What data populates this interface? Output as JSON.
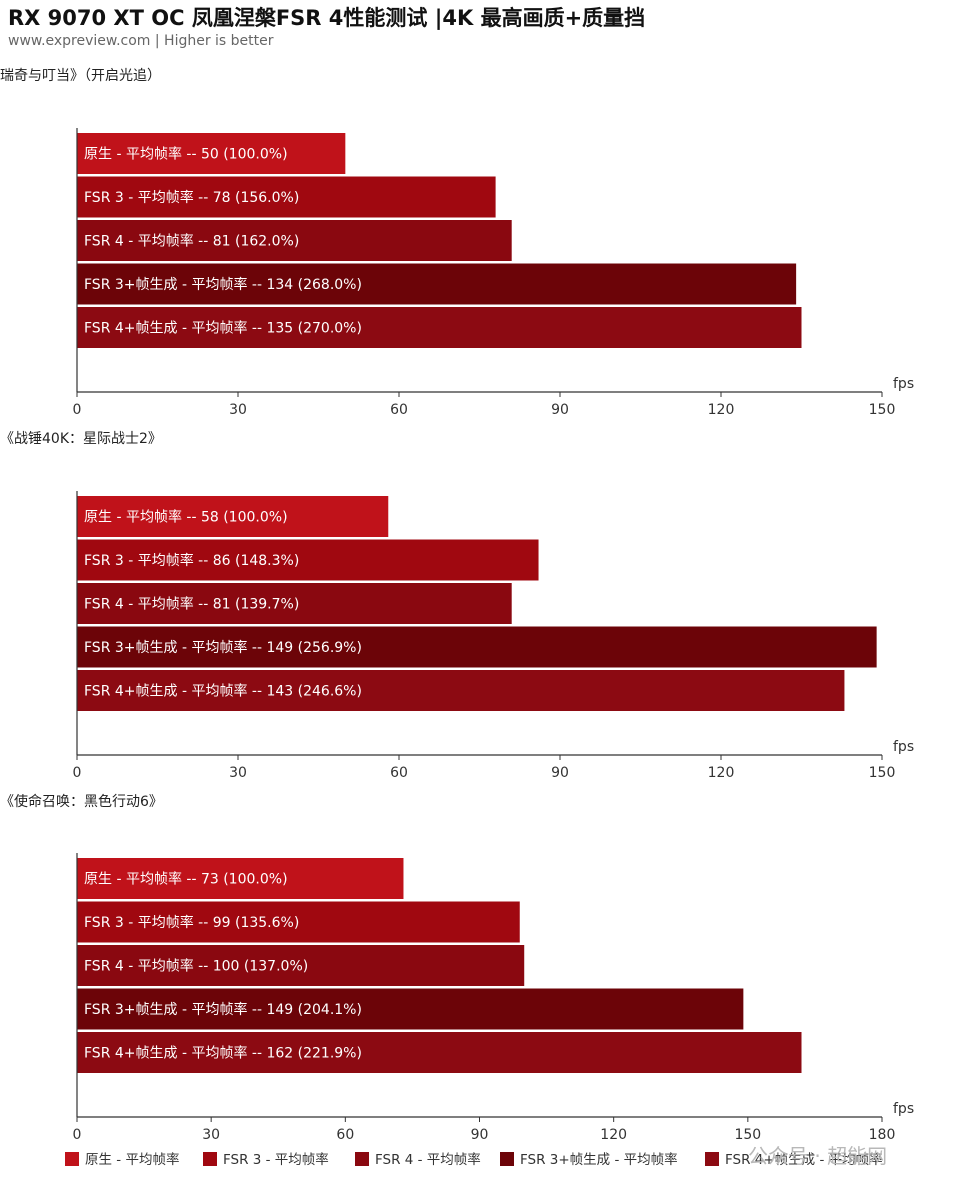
{
  "header": {
    "title": "RX 9070 XT OC 凤凰涅槃FSR 4性能测试 |4K 最高画质+质量挡",
    "subtitle": "www.expreview.com | Higher is better"
  },
  "watermark": "公众号 · 超能网",
  "chart_data": [
    {
      "type": "bar",
      "orientation": "horizontal",
      "title": "瑞奇与叮当》（开启光追）",
      "xlabel": "fps",
      "xlim": [
        0,
        150
      ],
      "xticks": [
        0,
        30,
        60,
        90,
        120,
        150
      ],
      "grid": false,
      "bars": [
        {
          "series": "原生 - 平均帧率",
          "value": 50,
          "label": "原生 - 平均帧率  --  50 (100.0%)"
        },
        {
          "series": "FSR 3  - 平均帧率",
          "value": 78,
          "label": "FSR 3  - 平均帧率  --  78 (156.0%)"
        },
        {
          "series": "FSR 4 - 平均帧率",
          "value": 81,
          "label": "FSR 4 - 平均帧率  --  81 (162.0%)"
        },
        {
          "series": "FSR 3+帧生成  - 平均帧率",
          "value": 134,
          "label": "FSR 3+帧生成  - 平均帧率  --  134 (268.0%)"
        },
        {
          "series": "FSR 4+帧生成 - 平均帧率",
          "value": 135,
          "label": "FSR 4+帧生成 - 平均帧率  --  135 (270.0%)"
        }
      ]
    },
    {
      "type": "bar",
      "orientation": "horizontal",
      "title": "《战锤40K：星际战士2》",
      "xlabel": "fps",
      "xlim": [
        0,
        150
      ],
      "xticks": [
        0,
        30,
        60,
        90,
        120,
        150
      ],
      "grid": false,
      "bars": [
        {
          "series": "原生 - 平均帧率",
          "value": 58,
          "label": "原生 - 平均帧率  --  58 (100.0%)"
        },
        {
          "series": "FSR 3  - 平均帧率",
          "value": 86,
          "label": "FSR 3  - 平均帧率  --  86 (148.3%)"
        },
        {
          "series": "FSR 4 - 平均帧率",
          "value": 81,
          "label": "FSR 4 - 平均帧率  --  81 (139.7%)"
        },
        {
          "series": "FSR 3+帧生成  - 平均帧率",
          "value": 149,
          "label": "FSR 3+帧生成  - 平均帧率  --  149 (256.9%)"
        },
        {
          "series": "FSR 4+帧生成 - 平均帧率",
          "value": 143,
          "label": "FSR 4+帧生成 - 平均帧率  --  143 (246.6%)"
        }
      ]
    },
    {
      "type": "bar",
      "orientation": "horizontal",
      "title": "《使命召唤：黑色行动6》",
      "xlabel": "fps",
      "xlim": [
        0,
        180
      ],
      "xticks": [
        0,
        30,
        60,
        90,
        120,
        150,
        180
      ],
      "grid": false,
      "bars": [
        {
          "series": "原生 - 平均帧率",
          "value": 73,
          "label": "原生 - 平均帧率  --  73 (100.0%)"
        },
        {
          "series": "FSR 3  - 平均帧率",
          "value": 99,
          "label": "FSR 3  - 平均帧率  --  99 (135.6%)"
        },
        {
          "series": "FSR 4 - 平均帧率",
          "value": 100,
          "label": "FSR 4 - 平均帧率  --  100 (137.0%)"
        },
        {
          "series": "FSR 3+帧生成  - 平均帧率",
          "value": 149,
          "label": "FSR 3+帧生成  - 平均帧率  --  149 (204.1%)"
        },
        {
          "series": "FSR 4+帧生成 - 平均帧率",
          "value": 162,
          "label": "FSR 4+帧生成 - 平均帧率  --  162 (221.9%)"
        }
      ]
    }
  ],
  "legend": {
    "placement": "bottom",
    "items": [
      {
        "name": "原生 - 平均帧率",
        "color": "#c0121a"
      },
      {
        "name": "FSR 3  - 平均帧率",
        "color": "#a00810"
      },
      {
        "name": "FSR 4 - 平均帧率",
        "color": "#8a0810"
      },
      {
        "name": "FSR 3+帧生成  - 平均帧率",
        "color": "#6c0408"
      },
      {
        "name": "FSR 4+帧生成 - 平均帧率",
        "color": "#8c0a12"
      }
    ]
  }
}
